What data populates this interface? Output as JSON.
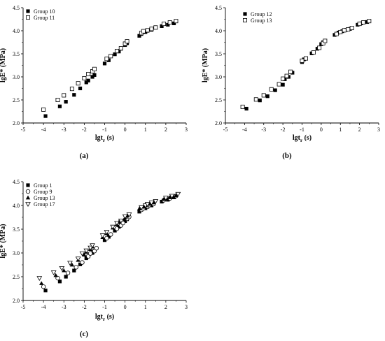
{
  "chart_data": [
    {
      "type": "scatter",
      "panel_label": "(a)",
      "xlabel": "lgt",
      "xlabel_sub": "r",
      "xlabel_unit": " (s)",
      "ylabel": "lgE* (MPa)",
      "xlim": [
        -5,
        3
      ],
      "ylim": [
        2.0,
        4.5
      ],
      "xticks": [
        "-5",
        "-4",
        "-3",
        "-2",
        "-1",
        "0",
        "1",
        "2",
        "3"
      ],
      "yticks": [
        "2.0",
        "2.5",
        "3.0",
        "3.5",
        "4.0",
        "4.5"
      ],
      "legend_position": "top-left",
      "series": [
        {
          "name": "Group 10",
          "marker": "filled-square",
          "x": [
            -3.9,
            -3.2,
            -2.9,
            -2.5,
            -2.2,
            -1.9,
            -1.8,
            -1.6,
            -1.5,
            -1.0,
            -0.8,
            -0.5,
            -0.3,
            -0.2,
            0.0,
            0.1,
            0.7,
            0.8,
            1.0,
            1.1,
            1.3,
            1.8,
            2.1,
            2.4
          ],
          "y": [
            2.15,
            2.36,
            2.46,
            2.61,
            2.75,
            2.88,
            2.92,
            3.0,
            3.04,
            3.29,
            3.36,
            3.49,
            3.55,
            3.61,
            3.69,
            3.73,
            3.89,
            3.93,
            3.97,
            4.0,
            4.02,
            4.1,
            4.13,
            4.16
          ]
        },
        {
          "name": "Group 11",
          "marker": "open-square",
          "x": [
            -4.0,
            -3.3,
            -3.0,
            -2.6,
            -2.3,
            -2.0,
            -1.8,
            -1.6,
            -1.5,
            -0.9,
            -0.7,
            -0.4,
            -0.2,
            0.0,
            0.1,
            0.8,
            0.9,
            1.1,
            1.3,
            1.5,
            1.9,
            2.2,
            2.5
          ],
          "y": [
            2.29,
            2.5,
            2.6,
            2.74,
            2.86,
            2.97,
            3.06,
            3.12,
            3.17,
            3.39,
            3.45,
            3.56,
            3.62,
            3.72,
            3.77,
            3.95,
            3.99,
            4.01,
            4.04,
            4.07,
            4.15,
            4.18,
            4.21
          ]
        }
      ]
    },
    {
      "type": "scatter",
      "panel_label": "(b)",
      "xlabel": "lgt",
      "xlabel_sub": "r",
      "xlabel_unit": "  (s)",
      "ylabel": "lgE* (MPa)",
      "xlim": [
        -5,
        3
      ],
      "ylim": [
        2.0,
        4.5
      ],
      "xticks": [
        "-5",
        "-4",
        "-3",
        "-2",
        "-1",
        "0",
        "1",
        "2",
        "3"
      ],
      "yticks": [
        "2.0",
        "2.5",
        "3.0",
        "3.5",
        "4.0",
        "4.5"
      ],
      "legend_position": "top-left",
      "series": [
        {
          "name": "Group 12",
          "marker": "filled-square",
          "x": [
            -3.9,
            -3.2,
            -2.8,
            -2.4,
            -2.0,
            -1.9,
            -1.7,
            -1.5,
            -1.0,
            -0.9,
            -0.5,
            -0.2,
            0.0,
            0.1,
            0.7,
            0.9,
            1.1,
            1.3,
            1.5,
            1.9,
            2.1,
            2.4
          ],
          "y": [
            2.31,
            2.49,
            2.58,
            2.71,
            2.83,
            2.95,
            3.0,
            3.09,
            3.32,
            3.38,
            3.51,
            3.61,
            3.71,
            3.75,
            3.91,
            3.96,
            3.99,
            4.02,
            4.04,
            4.13,
            4.16,
            4.19
          ]
        },
        {
          "name": "Group 13",
          "marker": "open-square",
          "x": [
            -4.1,
            -3.4,
            -3.0,
            -2.6,
            -2.2,
            -2.0,
            -1.8,
            -1.6,
            -1.0,
            -0.8,
            -0.4,
            -0.1,
            0.1,
            0.2,
            0.8,
            1.0,
            1.2,
            1.4,
            1.6,
            2.0,
            2.2,
            2.5
          ],
          "y": [
            2.35,
            2.51,
            2.6,
            2.73,
            2.84,
            2.96,
            3.02,
            3.11,
            3.35,
            3.4,
            3.53,
            3.63,
            3.73,
            3.78,
            3.93,
            3.97,
            4.01,
            4.03,
            4.06,
            4.15,
            4.18,
            4.21
          ]
        }
      ]
    },
    {
      "type": "scatter",
      "panel_label": "(c)",
      "xlabel": "lgt",
      "xlabel_sub": "r",
      "xlabel_unit": " (s)",
      "ylabel": "lgE* (MPa)",
      "xlim": [
        -5,
        3
      ],
      "ylim": [
        2.0,
        4.5
      ],
      "xticks": [
        "-5",
        "-4",
        "-3",
        "-2",
        "-1",
        "0",
        "1",
        "2",
        "3"
      ],
      "yticks": [
        "2.0",
        "2.5",
        "3.0",
        "3.5",
        "4.0",
        "4.5"
      ],
      "legend_position": "top-left",
      "series": [
        {
          "name": "Group 1",
          "marker": "filled-square",
          "x": [
            -3.9,
            -3.2,
            -2.9,
            -2.5,
            -2.2,
            -1.9,
            -1.8,
            -1.6,
            -1.5,
            -1.0,
            -0.8,
            -0.5,
            -0.3,
            -0.2,
            0.0,
            0.1,
            0.7,
            0.8,
            1.0,
            1.1,
            1.3,
            1.8,
            2.1,
            2.4
          ],
          "y": [
            2.21,
            2.4,
            2.5,
            2.63,
            2.76,
            2.89,
            2.93,
            3.0,
            3.05,
            3.27,
            3.34,
            3.47,
            3.55,
            3.59,
            3.67,
            3.71,
            3.87,
            3.91,
            3.94,
            3.97,
            4.0,
            4.08,
            4.12,
            4.17
          ]
        },
        {
          "name": "Group 9",
          "marker": "open-circle",
          "x": [
            -4.0,
            -3.3,
            -2.8,
            -2.4,
            -2.1,
            -1.8,
            -1.7,
            -1.5,
            -1.4,
            -0.9,
            -0.7,
            -0.4,
            -0.2,
            -0.1,
            0.1,
            0.2,
            0.8,
            0.9,
            1.1,
            1.2,
            1.4,
            1.9,
            2.2,
            2.5
          ],
          "y": [
            2.29,
            2.47,
            2.58,
            2.7,
            2.8,
            2.93,
            2.99,
            3.04,
            3.1,
            3.31,
            3.39,
            3.51,
            3.58,
            3.63,
            3.72,
            3.76,
            3.91,
            3.94,
            3.98,
            4.01,
            4.03,
            4.11,
            4.15,
            4.2
          ]
        },
        {
          "name": "Group 13",
          "marker": "filled-triangle",
          "x": [
            -4.1,
            -3.4,
            -3.0,
            -2.6,
            -2.3,
            -2.0,
            -1.9,
            -1.7,
            -1.6,
            -1.1,
            -0.9,
            -0.6,
            -0.4,
            -0.3,
            0.0,
            0.1,
            0.7,
            0.9,
            1.0,
            1.2,
            1.4,
            1.9,
            2.2,
            2.5
          ],
          "y": [
            2.36,
            2.53,
            2.63,
            2.75,
            2.85,
            2.96,
            3.02,
            3.08,
            3.13,
            3.33,
            3.41,
            3.53,
            3.6,
            3.65,
            3.74,
            3.78,
            3.93,
            3.97,
            4.0,
            4.03,
            4.06,
            4.13,
            4.17,
            4.21
          ]
        },
        {
          "name": "Group 17",
          "marker": "open-triangle-down",
          "x": [
            -4.2,
            -3.5,
            -3.1,
            -2.7,
            -2.3,
            -2.1,
            -1.9,
            -1.7,
            -1.6,
            -1.1,
            -0.9,
            -0.6,
            -0.4,
            -0.2,
            0.0,
            0.2,
            0.8,
            1.0,
            1.1,
            1.3,
            1.5,
            2.0,
            2.3,
            2.6
          ],
          "y": [
            2.47,
            2.59,
            2.68,
            2.79,
            2.88,
            2.99,
            3.05,
            3.11,
            3.16,
            3.37,
            3.44,
            3.55,
            3.63,
            3.68,
            3.77,
            3.81,
            3.96,
            4.0,
            4.03,
            4.06,
            4.09,
            4.16,
            4.2,
            4.24
          ]
        }
      ]
    }
  ]
}
